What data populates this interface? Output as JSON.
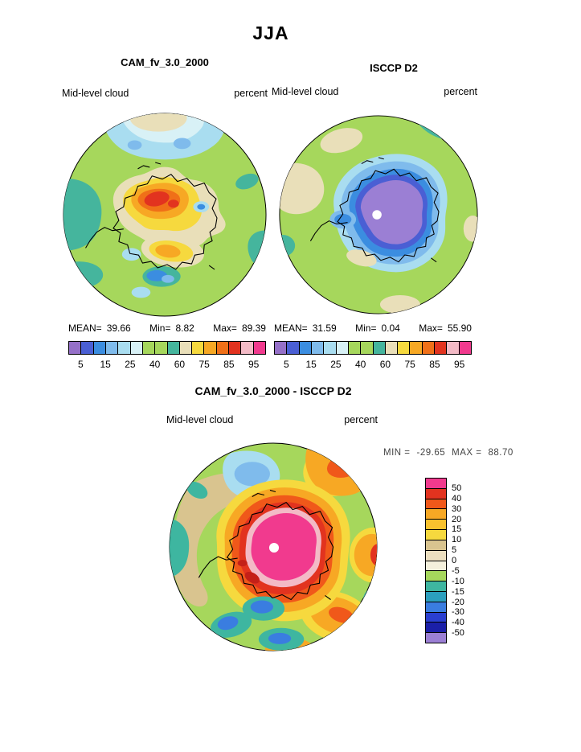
{
  "title": "JJA",
  "panels": {
    "cam": {
      "title": "CAM_fv_3.0_2000",
      "field": "Mid-level cloud",
      "units": "percent",
      "stats": {
        "mean_label": "MEAN=",
        "mean": "39.66",
        "min_label": "Min=",
        "min": "8.82",
        "max_label": "Max=",
        "max": "89.39"
      }
    },
    "isccp": {
      "title": "ISCCP D2",
      "field": "Mid-level cloud",
      "units": "percent",
      "stats": {
        "mean_label": "MEAN=",
        "mean": "31.59",
        "min_label": "Min=",
        "min": "0.04",
        "max_label": "Max=",
        "max": "55.90"
      }
    },
    "diff": {
      "title": "CAM_fv_3.0_2000 - ISCCP D2",
      "field": "Mid-level cloud",
      "units": "percent",
      "stats": {
        "min_label": "MIN =",
        "min": "-29.65",
        "max_label": "MAX =",
        "max": "88.70"
      }
    }
  },
  "colorbar_top": {
    "ticks": [
      "5",
      "15",
      "25",
      "40",
      "60",
      "75",
      "85",
      "95"
    ],
    "colors": [
      "#9570c8",
      "#4a5fd4",
      "#3b8de0",
      "#7fbbec",
      "#a9ddf0",
      "#d8f1f6",
      "#a6d75c",
      "#a6d75c",
      "#45b59d",
      "#e9dfb9",
      "#f6d93e",
      "#f7a824",
      "#f07018",
      "#e2331f",
      "#f3bac6",
      "#f13a8e"
    ]
  },
  "colorbar_diff": {
    "labels": [
      "50",
      "40",
      "30",
      "20",
      "15",
      "10",
      "5",
      "0",
      "-5",
      "-10",
      "-15",
      "-20",
      "-30",
      "-40",
      "-50"
    ],
    "colors": [
      "#f13a8e",
      "#e2331f",
      "#f0581a",
      "#f7a824",
      "#f9c22e",
      "#f6d93e",
      "#d9c48f",
      "#ecdfc0",
      "#f4f0dc",
      "#a6d75c",
      "#3eb6a0",
      "#2b9fbe",
      "#3a7de0",
      "#2a3fd0",
      "#1b1fa8",
      "#9b7fd4"
    ]
  },
  "chart_data": [
    {
      "type": "heatmap",
      "subtype": "polar_filled_contour_map",
      "projection": "south polar stereographic",
      "season": "JJA",
      "title": "CAM_fv_3.0_2000",
      "variable": "Mid-level cloud",
      "units": "percent",
      "stats": {
        "mean": 39.66,
        "min": 8.82,
        "max": 89.39
      },
      "contour_levels": [
        5,
        10,
        15,
        20,
        25,
        30,
        40,
        50,
        60,
        70,
        75,
        80,
        85,
        90,
        95
      ],
      "tick_labels": [
        5,
        15,
        25,
        40,
        60,
        75,
        85,
        95
      ],
      "palette": [
        "#9570c8",
        "#4a5fd4",
        "#3b8de0",
        "#7fbbec",
        "#a9ddf0",
        "#d8f1f6",
        "#a6d75c",
        "#a6d75c",
        "#45b59d",
        "#e9dfb9",
        "#f6d93e",
        "#f7a824",
        "#f07018",
        "#e2331f",
        "#f3bac6",
        "#f13a8e"
      ],
      "legend_position": "bottom"
    },
    {
      "type": "heatmap",
      "subtype": "polar_filled_contour_map",
      "projection": "south polar stereographic",
      "season": "JJA",
      "title": "ISCCP D2",
      "variable": "Mid-level cloud",
      "units": "percent",
      "stats": {
        "mean": 31.59,
        "min": 0.04,
        "max": 55.9
      },
      "contour_levels": [
        5,
        10,
        15,
        20,
        25,
        30,
        40,
        50,
        60,
        70,
        75,
        80,
        85,
        90,
        95
      ],
      "tick_labels": [
        5,
        15,
        25,
        40,
        60,
        75,
        85,
        95
      ],
      "palette": [
        "#9570c8",
        "#4a5fd4",
        "#3b8de0",
        "#7fbbec",
        "#a9ddf0",
        "#d8f1f6",
        "#a6d75c",
        "#a6d75c",
        "#45b59d",
        "#e9dfb9",
        "#f6d93e",
        "#f7a824",
        "#f07018",
        "#e2331f",
        "#f3bac6",
        "#f13a8e"
      ],
      "legend_position": "bottom"
    },
    {
      "type": "heatmap",
      "subtype": "polar_filled_contour_map",
      "projection": "south polar stereographic",
      "season": "JJA",
      "title": "CAM_fv_3.0_2000 - ISCCP D2",
      "variable": "Mid-level cloud",
      "units": "percent",
      "stats": {
        "min": -29.65,
        "max": 88.7
      },
      "contour_levels": [
        -50,
        -40,
        -30,
        -20,
        -15,
        -10,
        -5,
        0,
        5,
        10,
        15,
        20,
        30,
        40,
        50
      ],
      "colorbar_label_values": [
        50,
        40,
        30,
        20,
        15,
        10,
        5,
        0,
        -5,
        -10,
        -15,
        -20,
        -30,
        -40,
        -50
      ],
      "palette": [
        "#9b7fd4",
        "#1b1fa8",
        "#2a3fd0",
        "#3a7de0",
        "#2b9fbe",
        "#3eb6a0",
        "#a6d75c",
        "#f4f0dc",
        "#ecdfc0",
        "#d9c48f",
        "#f6d93e",
        "#f9c22e",
        "#f7a824",
        "#f0581a",
        "#e2331f",
        "#f13a8e"
      ],
      "legend_position": "right"
    }
  ]
}
